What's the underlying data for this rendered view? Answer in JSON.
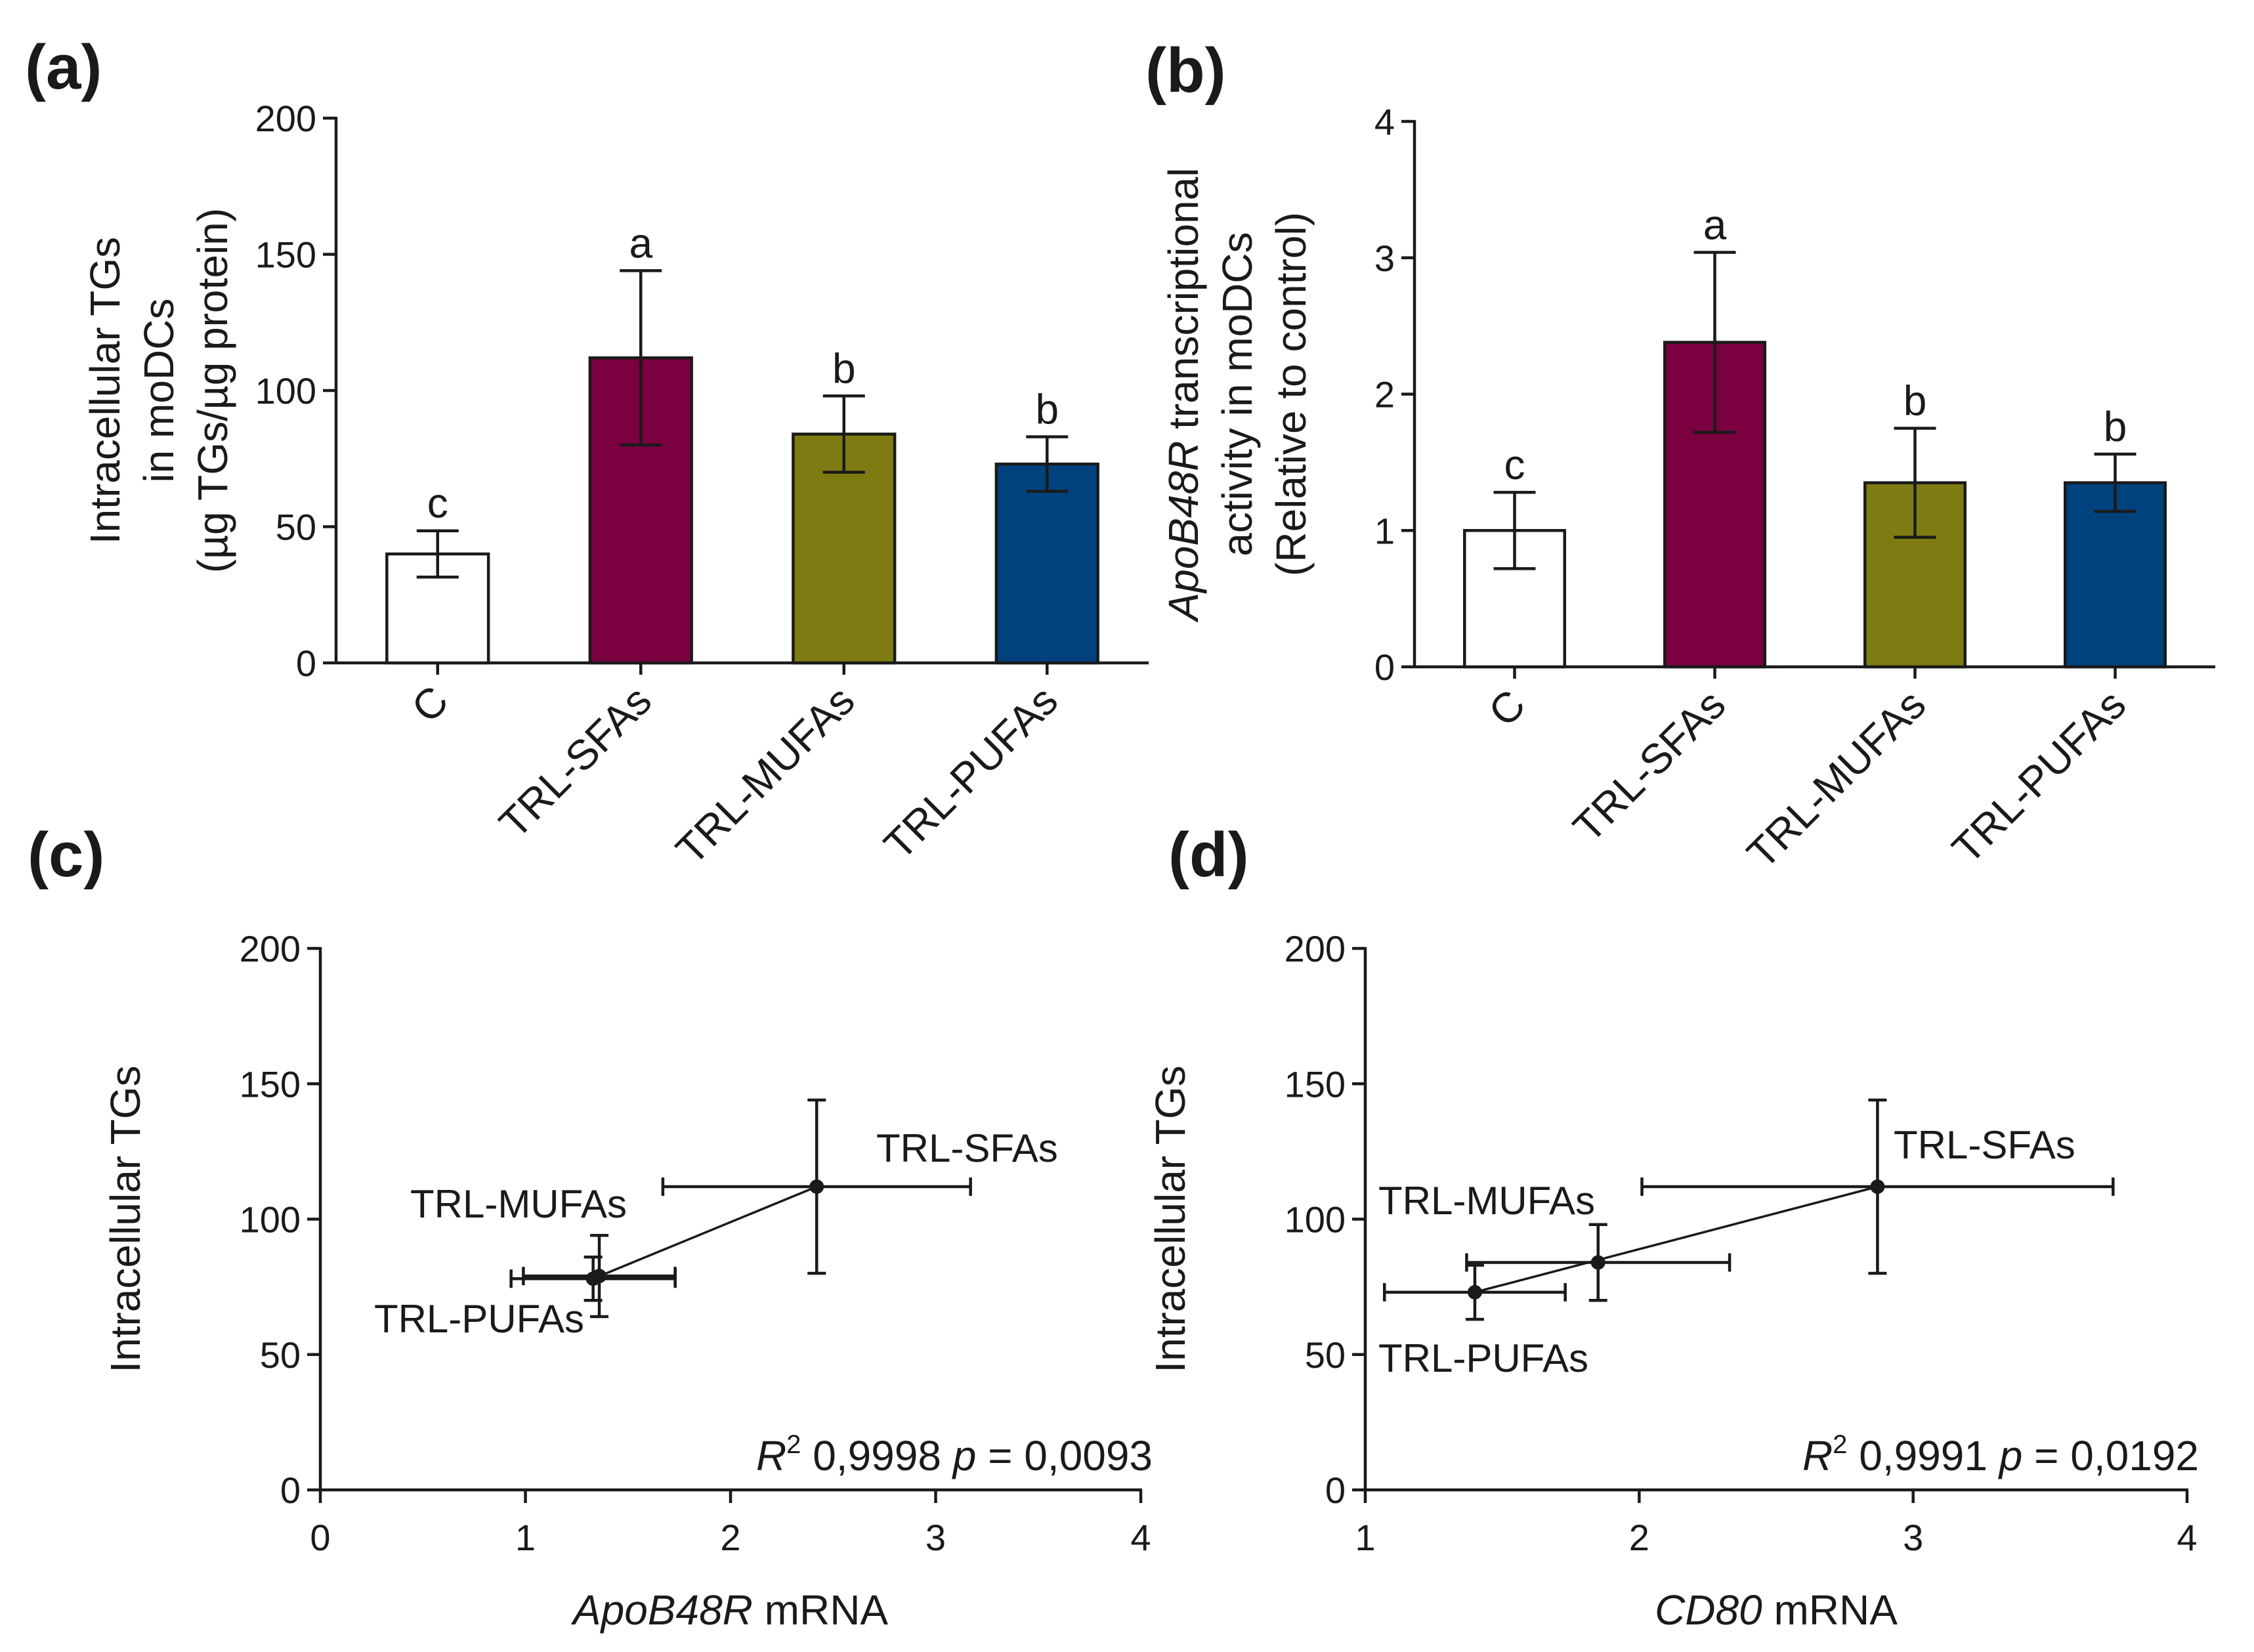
{
  "chart_data": [
    {
      "panel": "(a)",
      "type": "bar",
      "categories": [
        "C",
        "TRL-SFAs",
        "TRL-MUFAs",
        "TRL-PUFAs"
      ],
      "values": [
        40,
        112,
        84,
        73
      ],
      "errors": [
        8.5,
        32,
        14,
        10
      ],
      "significance": [
        "c",
        "a",
        "b",
        "b"
      ],
      "colors": [
        "#ffffff",
        "#7a0040",
        "#7d7b12",
        "#00427e"
      ],
      "ylabel": [
        "Intracellular TGs",
        "in moDCs",
        "(µg TGs/µg protein)"
      ],
      "ylim": [
        0,
        200
      ],
      "yticks": [
        0,
        50,
        100,
        150,
        200
      ]
    },
    {
      "panel": "(b)",
      "type": "bar",
      "categories": [
        "C",
        "TRL-SFAs",
        "TRL-MUFAs",
        "TRL-PUFAs"
      ],
      "values": [
        1.0,
        2.38,
        1.35,
        1.35
      ],
      "errors": [
        0.28,
        0.66,
        0.4,
        0.21
      ],
      "significance": [
        "c",
        "a",
        "b",
        "b"
      ],
      "colors": [
        "#ffffff",
        "#7a0040",
        "#7d7b12",
        "#00427e"
      ],
      "ylabel": [
        "transcriptional",
        "activity in moDCs",
        "(Relative to control)"
      ],
      "ylabel_italic": "ApoB48R",
      "ylim": [
        0,
        4
      ],
      "yticks": [
        0,
        1,
        2,
        3,
        4
      ]
    },
    {
      "panel": "(c)",
      "type": "scatter",
      "points": [
        {
          "label": "TRL-SFAs",
          "x": 2.42,
          "y": 112,
          "xerr": 0.75,
          "yerr": 32
        },
        {
          "label": "TRL-MUFAs",
          "x": 1.36,
          "y": 79,
          "xerr": 0.37,
          "yerr": 15
        },
        {
          "label": "TRL-PUFAs",
          "x": 1.33,
          "y": 78,
          "xerr": 0.4,
          "yerr": 8
        }
      ],
      "fit": [
        [
          1.33,
          78
        ],
        [
          2.42,
          112
        ]
      ],
      "xlabel_italic": "ApoB48R",
      "xlabel": "mRNA",
      "ylabel": "Intracellular TGs",
      "xlim": [
        0,
        4
      ],
      "ylim": [
        0,
        200
      ],
      "xticks": [
        0,
        1,
        2,
        3,
        4
      ],
      "yticks": [
        0,
        50,
        100,
        150,
        200
      ],
      "r2_label": "R",
      "r2_sup": "2",
      "r2_value": "0,9998",
      "p_label": "p",
      "p_value": "= 0,0093"
    },
    {
      "panel": "(d)",
      "type": "scatter",
      "points": [
        {
          "label": "TRL-SFAs",
          "x": 2.87,
          "y": 112,
          "xerr": 0.86,
          "yerr": 32
        },
        {
          "label": "TRL-MUFAs",
          "x": 1.85,
          "y": 84,
          "xerr": 0.48,
          "yerr": 14
        },
        {
          "label": "TRL-PUFAs",
          "x": 1.4,
          "y": 73,
          "xerr": 0.33,
          "yerr": 10
        }
      ],
      "fit": [
        [
          1.4,
          73
        ],
        [
          2.87,
          112
        ]
      ],
      "xlabel_italic": "CD80",
      "xlabel": "mRNA",
      "ylabel": "Intracellular TGs",
      "xlim": [
        1,
        4
      ],
      "ylim": [
        0,
        200
      ],
      "xticks": [
        1,
        2,
        3,
        4
      ],
      "yticks": [
        0,
        50,
        100,
        150,
        200
      ],
      "r2_label": "R",
      "r2_sup": "2",
      "r2_value": "0,9991",
      "p_label": "p",
      "p_value": "= 0,0192"
    }
  ]
}
